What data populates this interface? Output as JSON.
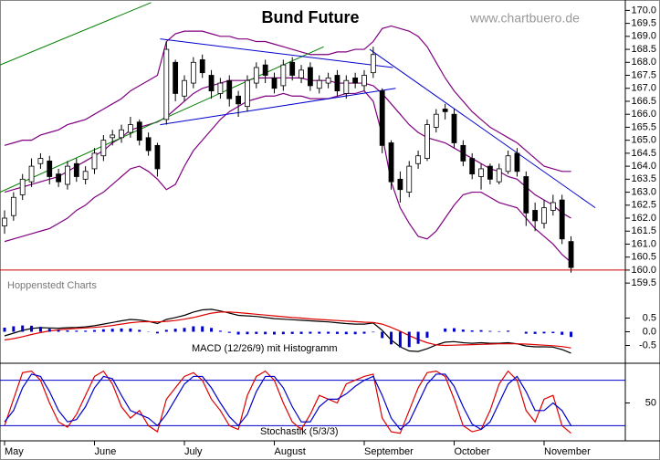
{
  "chart_data": [
    {
      "type": "candlestick",
      "title": "Bund Future",
      "watermark": "www.chartbuero.de",
      "source": "Hoppenstedt Charts",
      "categories": [
        "May",
        null,
        null,
        null,
        null,
        null,
        null,
        null,
        null,
        null,
        "June",
        null,
        null,
        null,
        null,
        null,
        null,
        null,
        null,
        null,
        "July",
        null,
        null,
        null,
        null,
        null,
        null,
        null,
        null,
        null,
        "August",
        null,
        null,
        null,
        null,
        null,
        null,
        null,
        null,
        null,
        "September",
        null,
        null,
        null,
        null,
        null,
        null,
        null,
        null,
        null,
        "October",
        null,
        null,
        null,
        null,
        null,
        null,
        null,
        null,
        null,
        "November",
        null,
        null,
        null
      ],
      "open": [
        161.7,
        162.1,
        162.9,
        163.4,
        164.1,
        164.2,
        163.7,
        163.3,
        164.1,
        163.5,
        163.9,
        164.4,
        165.1,
        165.1,
        165.3,
        165.7,
        165.1,
        164.8,
        165.8,
        168.0,
        166.7,
        167.2,
        168.1,
        167.5,
        166.8,
        167.3,
        166.7,
        166.3,
        167.2,
        167.9,
        167.4,
        167.1,
        168.0,
        167.4,
        167.8,
        167.0,
        167.2,
        167.5,
        166.8,
        167.4,
        167.1,
        167.6,
        166.9,
        164.9,
        163.5,
        163.0,
        164.1,
        164.3,
        165.5,
        166.2,
        166.0,
        164.8,
        164.3,
        163.6,
        164.0,
        163.4,
        163.8,
        164.5,
        163.6,
        162.3,
        161.8,
        162.3,
        162.7,
        161.1
      ],
      "high": [
        162.3,
        163.0,
        163.7,
        164.3,
        164.5,
        164.4,
        163.9,
        164.2,
        164.3,
        164.0,
        164.7,
        165.2,
        165.4,
        165.6,
        165.9,
        165.8,
        165.3,
        164.9,
        168.8,
        168.1,
        167.5,
        168.2,
        168.3,
        167.7,
        167.4,
        167.5,
        166.9,
        167.5,
        168.0,
        168.1,
        167.6,
        168.1,
        168.2,
        167.9,
        168.0,
        167.5,
        167.6,
        167.7,
        167.5,
        167.6,
        167.7,
        168.6,
        167.0,
        165.0,
        163.8,
        164.2,
        164.6,
        165.8,
        166.2,
        166.4,
        166.2,
        165.0,
        164.5,
        164.1,
        164.1,
        164.1,
        164.6,
        164.7,
        163.8,
        162.6,
        162.7,
        162.9,
        162.9,
        161.3
      ],
      "low": [
        161.4,
        161.9,
        162.7,
        163.2,
        163.9,
        163.3,
        163.2,
        163.1,
        163.4,
        163.3,
        163.7,
        164.2,
        164.8,
        164.9,
        165.1,
        164.8,
        164.4,
        163.6,
        165.6,
        166.5,
        166.5,
        167.0,
        167.4,
        166.6,
        166.6,
        166.3,
        165.9,
        166.1,
        167.0,
        167.2,
        166.8,
        166.9,
        167.3,
        167.2,
        166.9,
        166.8,
        167.0,
        166.7,
        166.6,
        167.0,
        166.9,
        167.4,
        164.5,
        163.1,
        162.6,
        162.8,
        163.9,
        164.2,
        165.3,
        165.8,
        164.7,
        164.0,
        163.5,
        163.1,
        163.3,
        163.3,
        163.7,
        163.6,
        161.7,
        161.5,
        161.6,
        162.1,
        161.0,
        159.9
      ],
      "close": [
        162.0,
        162.8,
        163.5,
        164.0,
        164.3,
        163.6,
        163.4,
        164.0,
        163.6,
        163.8,
        164.5,
        165.0,
        165.2,
        165.4,
        165.6,
        165.0,
        164.6,
        163.9,
        168.5,
        166.8,
        167.3,
        168.0,
        167.6,
        166.9,
        167.2,
        166.6,
        166.4,
        167.3,
        167.8,
        167.5,
        167.0,
        167.9,
        167.5,
        167.7,
        167.1,
        167.3,
        167.4,
        166.9,
        167.3,
        167.2,
        167.5,
        168.3,
        164.8,
        163.4,
        163.1,
        164.0,
        164.4,
        165.6,
        166.0,
        166.1,
        164.9,
        164.2,
        163.7,
        163.9,
        163.5,
        163.9,
        164.4,
        163.8,
        162.2,
        161.9,
        162.4,
        162.6,
        161.2,
        160.1
      ],
      "bands": [
        {
          "color": "#800080",
          "values": [
            164.8,
            164.9,
            165.0,
            165.0,
            165.2,
            165.3,
            165.4,
            165.6,
            165.7,
            165.8,
            166.0,
            166.2,
            166.4,
            166.6,
            166.9,
            167.1,
            167.3,
            167.5,
            168.8,
            169.1,
            169.2,
            169.2,
            169.2,
            169.1,
            169.0,
            169.0,
            168.9,
            168.9,
            168.8,
            168.8,
            168.7,
            168.6,
            168.5,
            168.4,
            168.3,
            168.3,
            168.3,
            168.4,
            168.4,
            168.5,
            168.5,
            168.8,
            169.3,
            169.4,
            169.3,
            169.2,
            169.0,
            168.6,
            168.0,
            167.4,
            166.9,
            166.5,
            166.1,
            165.8,
            165.5,
            165.3,
            165.1,
            164.9,
            164.6,
            164.3,
            164.0,
            163.9,
            163.8,
            163.8
          ]
        },
        {
          "color": "#800080",
          "values": [
            163.0,
            163.1,
            163.2,
            163.3,
            163.4,
            163.5,
            163.6,
            163.8,
            164.0,
            164.2,
            164.4,
            164.6,
            164.9,
            165.1,
            165.4,
            165.5,
            165.6,
            165.7,
            165.9,
            166.2,
            166.5,
            166.8,
            167.0,
            167.1,
            167.2,
            167.3,
            167.3,
            167.3,
            167.4,
            167.4,
            167.4,
            167.4,
            167.4,
            167.4,
            167.3,
            167.3,
            167.3,
            167.2,
            167.2,
            167.2,
            167.2,
            167.1,
            166.8,
            166.4,
            166.0,
            165.6,
            165.3,
            165.1,
            165.0,
            164.9,
            164.7,
            164.5,
            164.3,
            164.1,
            163.9,
            163.8,
            163.6,
            163.5,
            163.2,
            162.9,
            162.7,
            162.5,
            162.2,
            162.0
          ]
        },
        {
          "color": "#800080",
          "values": [
            161.1,
            161.2,
            161.3,
            161.4,
            161.5,
            161.6,
            161.8,
            162.0,
            162.3,
            162.5,
            162.8,
            163.0,
            163.3,
            163.6,
            163.9,
            164.0,
            163.8,
            163.5,
            163.1,
            163.3,
            164.0,
            164.6,
            165.0,
            165.4,
            165.8,
            166.1,
            166.3,
            166.5,
            166.6,
            166.7,
            166.7,
            166.8,
            166.7,
            166.7,
            166.6,
            166.6,
            166.6,
            166.7,
            166.8,
            166.8,
            166.9,
            166.5,
            165.2,
            163.4,
            162.4,
            161.8,
            161.3,
            161.2,
            161.5,
            162.0,
            162.5,
            162.9,
            163.0,
            163.0,
            162.8,
            162.6,
            162.5,
            162.4,
            162.0,
            161.6,
            161.3,
            161.0,
            160.6,
            160.3
          ]
        }
      ],
      "trendlines": [
        {
          "color": "#008000",
          "x": [
            -0.5,
            16.3
          ],
          "y": [
            167.9,
            170.3
          ]
        },
        {
          "color": "#008000",
          "x": [
            -0.5,
            35.5
          ],
          "y": [
            163.0,
            168.6
          ]
        },
        {
          "color": "#0000cc",
          "x": [
            17.3,
            43.2
          ],
          "y": [
            168.9,
            167.8
          ]
        },
        {
          "color": "#0000cc",
          "x": [
            17.3,
            43.5
          ],
          "y": [
            165.6,
            167.0
          ]
        },
        {
          "color": "#0000cc",
          "x": [
            40.6,
            65.7
          ],
          "y": [
            168.5,
            162.4
          ]
        }
      ],
      "hline": {
        "value": 160.0,
        "color": "#cc0000"
      },
      "ylim": [
        159.4,
        170.4
      ],
      "yticks": [
        159.5,
        {
          "value": 160,
          "label": "160.0"
        },
        160.5,
        {
          "value": 161,
          "label": "161.0"
        },
        161.5,
        {
          "value": 162,
          "label": "162.0"
        },
        162.5,
        {
          "value": 163,
          "label": "163.0"
        },
        163.5,
        {
          "value": 164,
          "label": "164.0"
        },
        164.5,
        {
          "value": 165,
          "label": "165.0"
        },
        165.5,
        {
          "value": 166,
          "label": "166.0"
        },
        166.5,
        {
          "value": 167,
          "label": "167.0"
        },
        167.5,
        {
          "value": 168,
          "label": "168.0"
        },
        168.5,
        {
          "value": 169,
          "label": "169.0"
        },
        169.5,
        {
          "value": 170,
          "label": "170.0"
        }
      ]
    },
    {
      "type": "line",
      "label": "MACD (12/26/9) mit Histogramm",
      "series": [
        {
          "color": "#000000",
          "values": [
            -0.15,
            -0.05,
            0.05,
            0.12,
            0.15,
            0.14,
            0.13,
            0.15,
            0.16,
            0.18,
            0.22,
            0.28,
            0.34,
            0.4,
            0.45,
            0.43,
            0.38,
            0.3,
            0.45,
            0.52,
            0.6,
            0.72,
            0.8,
            0.82,
            0.76,
            0.68,
            0.6,
            0.58,
            0.56,
            0.52,
            0.48,
            0.46,
            0.44,
            0.42,
            0.4,
            0.38,
            0.36,
            0.33,
            0.3,
            0.28,
            0.28,
            0.32,
            0.05,
            -0.3,
            -0.55,
            -0.7,
            -0.72,
            -0.62,
            -0.48,
            -0.38,
            -0.36,
            -0.4,
            -0.42,
            -0.4,
            -0.42,
            -0.42,
            -0.4,
            -0.44,
            -0.52,
            -0.55,
            -0.55,
            -0.56,
            -0.65,
            -0.78
          ]
        },
        {
          "color": "#dd0000",
          "values": [
            -0.3,
            -0.25,
            -0.18,
            -0.1,
            -0.03,
            0.03,
            0.07,
            0.1,
            0.12,
            0.14,
            0.16,
            0.19,
            0.23,
            0.28,
            0.33,
            0.36,
            0.37,
            0.36,
            0.38,
            0.41,
            0.46,
            0.52,
            0.6,
            0.68,
            0.72,
            0.72,
            0.7,
            0.67,
            0.64,
            0.61,
            0.58,
            0.55,
            0.52,
            0.5,
            0.47,
            0.45,
            0.43,
            0.41,
            0.39,
            0.37,
            0.35,
            0.34,
            0.28,
            0.16,
            0.02,
            -0.14,
            -0.28,
            -0.4,
            -0.48,
            -0.5,
            -0.49,
            -0.48,
            -0.47,
            -0.46,
            -0.45,
            -0.44,
            -0.44,
            -0.44,
            -0.45,
            -0.47,
            -0.49,
            -0.51,
            -0.54,
            -0.59
          ]
        },
        {
          "color": "#0000cc",
          "style": "bar",
          "values": [
            0.15,
            0.2,
            0.23,
            0.22,
            0.18,
            0.11,
            0.06,
            0.05,
            0.04,
            0.04,
            0.06,
            0.09,
            0.11,
            0.12,
            0.12,
            0.07,
            0.01,
            -0.06,
            0.07,
            0.11,
            0.14,
            0.2,
            0.2,
            0.14,
            0.04,
            -0.04,
            -0.1,
            -0.09,
            -0.08,
            -0.09,
            -0.1,
            -0.09,
            -0.08,
            -0.08,
            -0.07,
            -0.07,
            -0.07,
            -0.08,
            -0.09,
            -0.09,
            -0.07,
            -0.02,
            -0.23,
            -0.46,
            -0.57,
            -0.56,
            -0.44,
            -0.22,
            0.0,
            0.12,
            0.13,
            0.08,
            0.05,
            0.06,
            0.03,
            0.02,
            0.04,
            0.0,
            -0.07,
            -0.08,
            -0.06,
            -0.05,
            -0.11,
            -0.19
          ]
        }
      ],
      "ylim": [
        -1.15,
        1.95
      ],
      "yticks": [
        0.5,
        {
          "value": 0,
          "label": "0.0"
        },
        -0.5
      ]
    },
    {
      "type": "line",
      "label": "Stochastik (5/3/3)",
      "series": [
        {
          "color": "#dd0000",
          "values": [
            20,
            55,
            90,
            92,
            80,
            50,
            25,
            18,
            35,
            60,
            85,
            92,
            75,
            45,
            30,
            40,
            20,
            12,
            55,
            70,
            85,
            90,
            80,
            55,
            40,
            20,
            15,
            60,
            85,
            92,
            80,
            50,
            25,
            15,
            35,
            60,
            55,
            50,
            75,
            80,
            85,
            88,
            30,
            12,
            10,
            40,
            70,
            90,
            92,
            85,
            55,
            20,
            12,
            15,
            40,
            75,
            92,
            80,
            40,
            25,
            55,
            60,
            20,
            10
          ]
        },
        {
          "color": "#0000cc",
          "values": [
            25,
            40,
            70,
            88,
            85,
            65,
            40,
            25,
            28,
            45,
            70,
            85,
            82,
            60,
            40,
            35,
            30,
            20,
            35,
            55,
            75,
            85,
            85,
            70,
            50,
            32,
            20,
            35,
            65,
            85,
            85,
            70,
            45,
            25,
            25,
            45,
            55,
            55,
            62,
            72,
            80,
            85,
            60,
            30,
            15,
            25,
            50,
            75,
            88,
            88,
            72,
            45,
            22,
            15,
            25,
            50,
            75,
            85,
            65,
            40,
            40,
            50,
            40,
            20
          ]
        }
      ],
      "hlines": {
        "values": [
          80,
          20
        ],
        "color": "#0000cc"
      },
      "ylim": [
        0,
        100
      ],
      "yticks": [
        50
      ]
    }
  ]
}
